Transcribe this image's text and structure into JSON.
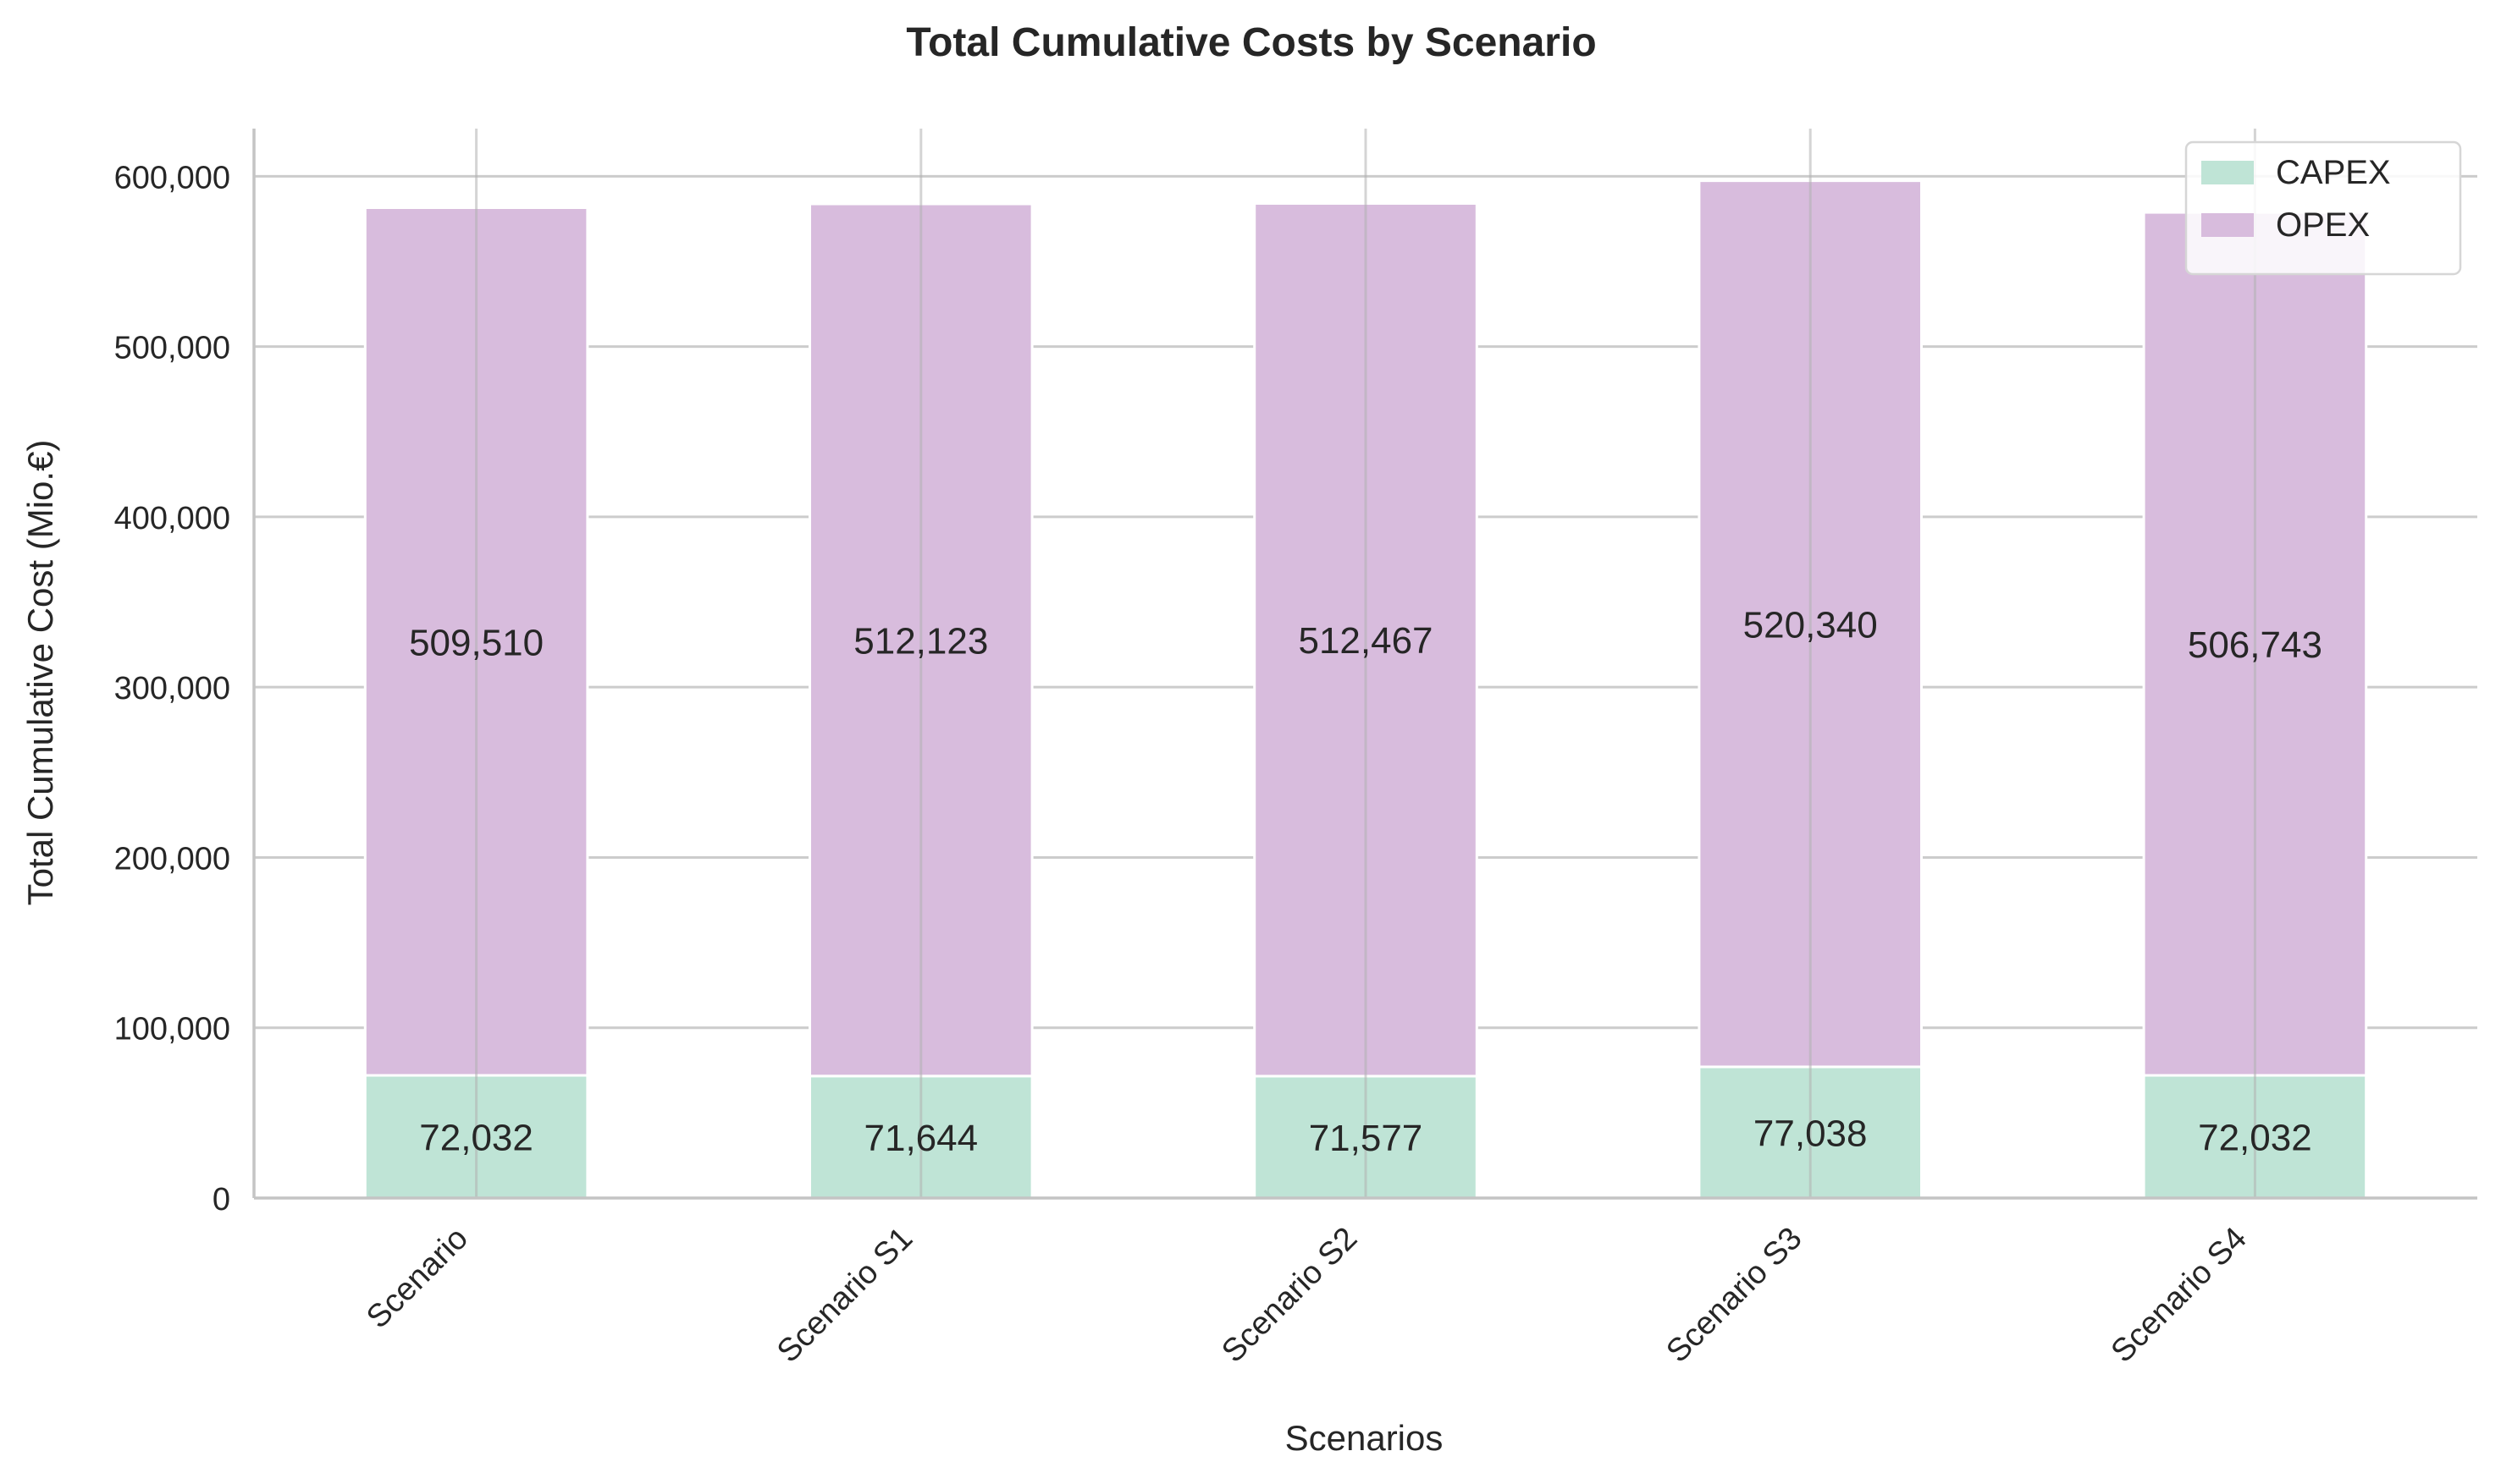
{
  "chart_data": {
    "type": "bar",
    "stacked": true,
    "title": "Total Cumulative Costs by Scenario",
    "xlabel": "Scenarios",
    "ylabel": "Total Cumulative Cost (Mio.€)",
    "categories": [
      "Scenario",
      "Scenario S1",
      "Scenario S2",
      "Scenario S3",
      "Scenario S4"
    ],
    "series": [
      {
        "name": "CAPEX",
        "color": "#bfe4d6",
        "values": [
          72032,
          71644,
          71577,
          77038,
          72032
        ],
        "labels": [
          "72,032",
          "71,644",
          "71,577",
          "77,038",
          "72,032"
        ]
      },
      {
        "name": "OPEX",
        "color": "#d8bcdd",
        "values": [
          509510,
          512123,
          512467,
          520340,
          506743
        ],
        "labels": [
          "509,510",
          "512,123",
          "512,467",
          "520,340",
          "506,743"
        ]
      }
    ],
    "ylim": [
      0,
      628000
    ],
    "yticks": [
      0,
      100000,
      200000,
      300000,
      400000,
      500000,
      600000
    ],
    "ytick_labels": [
      "0",
      "100,000",
      "200,000",
      "300,000",
      "400,000",
      "500,000",
      "600,000"
    ],
    "grid": true,
    "legend_position": "top-right",
    "colors": {
      "grid": "#cccccc",
      "axis": "#c4c4c4",
      "text": "#262626",
      "bar_edge": "#ffffff"
    }
  }
}
